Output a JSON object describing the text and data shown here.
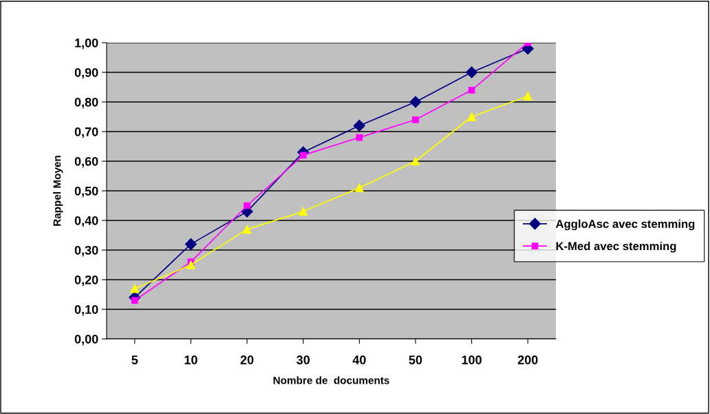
{
  "chart_data": {
    "type": "line",
    "xlabel": "Nombre de  documents",
    "ylabel": "Rappel Moyen",
    "categories": [
      "5",
      "10",
      "20",
      "30",
      "40",
      "50",
      "100",
      "200"
    ],
    "series": [
      {
        "name": "AggloAsc avec stemming",
        "color": "#000080",
        "marker": "diamond",
        "values": [
          0.14,
          0.32,
          0.43,
          0.63,
          0.72,
          0.8,
          0.9,
          0.98
        ]
      },
      {
        "name": "K-Med avec stemming",
        "color": "#ff00ff",
        "marker": "square",
        "values": [
          0.13,
          0.26,
          0.45,
          0.62,
          0.68,
          0.74,
          0.84,
          1.0
        ]
      },
      {
        "color": "#ffff00",
        "marker": "triangle",
        "values": [
          0.17,
          0.25,
          0.37,
          0.43,
          0.51,
          0.6,
          0.75,
          0.82
        ]
      }
    ],
    "ylim": [
      0,
      1
    ],
    "yticks": [
      {
        "value": 0,
        "label": "0,00"
      },
      {
        "value": 0.1,
        "label": "0,10"
      },
      {
        "value": 0.2,
        "label": "0,20"
      },
      {
        "value": 0.3,
        "label": "0,30"
      },
      {
        "value": 0.4,
        "label": "0,40"
      },
      {
        "value": 0.5,
        "label": "0,50"
      },
      {
        "value": 0.6,
        "label": "0,60"
      },
      {
        "value": 0.7,
        "label": "0,70"
      },
      {
        "value": 0.8,
        "label": "0,80"
      },
      {
        "value": 0.9,
        "label": "0,90"
      },
      {
        "value": 1,
        "label": "1,00"
      }
    ],
    "grid": "y",
    "legend": "right",
    "line_style": "solid"
  }
}
